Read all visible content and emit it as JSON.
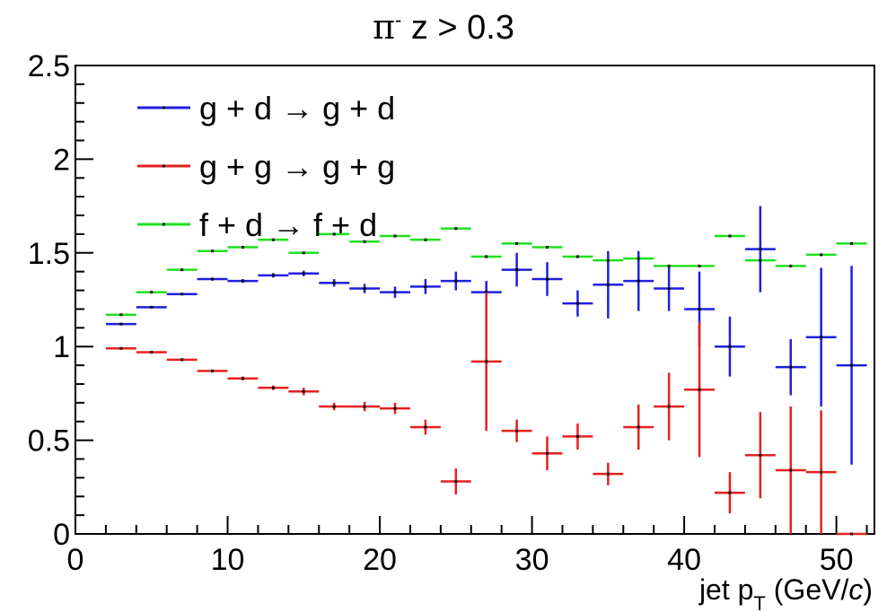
{
  "title": {
    "particle": "π",
    "charge": "-",
    "cut": " z > 0.3"
  },
  "chart_data": {
    "type": "scatter",
    "xlabel": "jet p_T (GeV/c)",
    "xlabel_parts": {
      "main": "jet p",
      "sub": "T",
      "open": " (GeV/",
      "unit": "c",
      "close": ")"
    },
    "ylabel": "",
    "xlim": [
      0,
      52.5
    ],
    "ylim": [
      0,
      2.5
    ],
    "x_ticks": [
      0,
      10,
      20,
      30,
      40,
      50
    ],
    "y_ticks": [
      0,
      0.5,
      1,
      1.5,
      2,
      2.5
    ],
    "y_tick_labels": [
      "0",
      "0.5",
      "1",
      "1.5",
      "2",
      "2.5"
    ],
    "grid": false,
    "legend_position": "top-left",
    "x": [
      3,
      5,
      7,
      9,
      11,
      13,
      15,
      17,
      19,
      21,
      23,
      25,
      27,
      29,
      31,
      33,
      35,
      37,
      39,
      41,
      43,
      45,
      47,
      49,
      51
    ],
    "x_error": 1,
    "series": [
      {
        "name": "g + d → g + d",
        "color": "#1f1fe0",
        "values": [
          1.12,
          1.21,
          1.28,
          1.36,
          1.35,
          1.38,
          1.39,
          1.34,
          1.31,
          1.29,
          1.32,
          1.35,
          1.29,
          1.41,
          1.36,
          1.23,
          1.33,
          1.35,
          1.31,
          1.2,
          1.0,
          1.52,
          0.89,
          1.05,
          0.9
        ],
        "errors": [
          0.005,
          0.006,
          0.006,
          0.008,
          0.01,
          0.012,
          0.015,
          0.02,
          0.025,
          0.03,
          0.04,
          0.05,
          0.06,
          0.09,
          0.09,
          0.07,
          0.18,
          0.16,
          0.12,
          0.2,
          0.16,
          0.23,
          0.15,
          0.37,
          0.53
        ]
      },
      {
        "name": "g + g → g + g",
        "color": "#e81f1f",
        "values": [
          0.99,
          0.97,
          0.93,
          0.87,
          0.83,
          0.78,
          0.76,
          0.68,
          0.68,
          0.67,
          0.57,
          0.28,
          0.92,
          0.55,
          0.43,
          0.52,
          0.32,
          0.57,
          0.68,
          0.77,
          0.22,
          0.42,
          0.34,
          0.33,
          0.0
        ],
        "errors": [
          0.005,
          0.005,
          0.006,
          0.008,
          0.01,
          0.012,
          0.02,
          0.02,
          0.025,
          0.03,
          0.04,
          0.07,
          0.37,
          0.06,
          0.09,
          0.07,
          0.06,
          0.12,
          0.18,
          0.36,
          0.11,
          0.23,
          0.34,
          0.33,
          0.0
        ]
      },
      {
        "name": "f + d → f + d",
        "color": "#1fe01f",
        "values": [
          1.17,
          1.29,
          1.41,
          1.51,
          1.53,
          1.57,
          1.5,
          1.6,
          1.56,
          1.59,
          1.57,
          1.63,
          1.48,
          1.55,
          1.53,
          1.48,
          1.46,
          1.47,
          1.43,
          1.43,
          1.59,
          1.46,
          1.43,
          1.49,
          1.55
        ]
      }
    ]
  }
}
